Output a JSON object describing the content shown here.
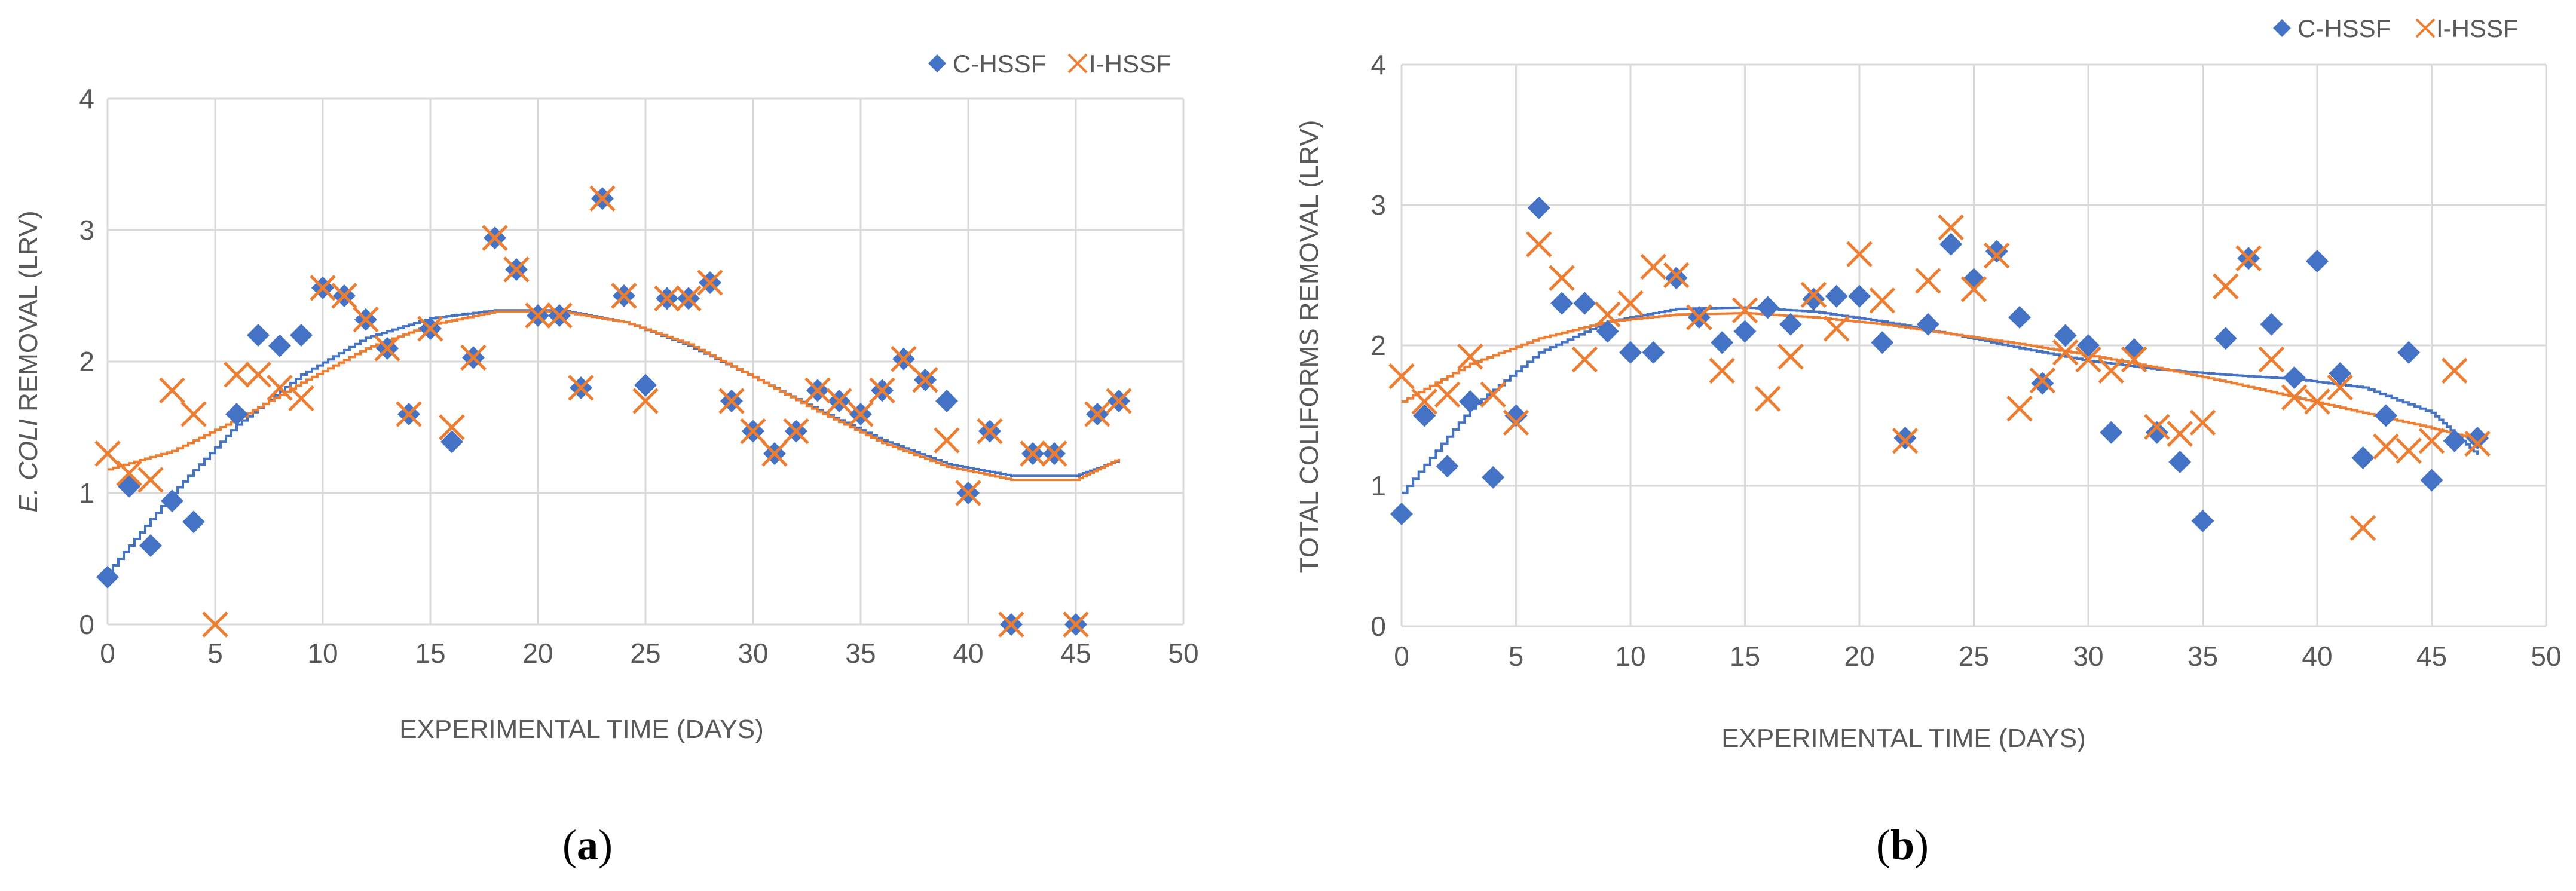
{
  "colors": {
    "c_hssf": "#4472C4",
    "i_hssf": "#ED7D31",
    "grid": "#D9D9D9",
    "text": "#595959"
  },
  "chart_data": [
    {
      "panel_label": "a",
      "type": "scatter",
      "title": "",
      "xlabel": "EXPERIMENTAL TIME (DAYS)",
      "ylabel_italic": "E. COLI",
      "ylabel_rest": " REMOVAL (LRV)",
      "xlim": [
        0,
        50
      ],
      "ylim": [
        0,
        4
      ],
      "xticks": [
        0,
        5,
        10,
        15,
        20,
        25,
        30,
        35,
        40,
        45,
        50
      ],
      "yticks": [
        0,
        1,
        2,
        3,
        4
      ],
      "grid": true,
      "legend_position": "top-right",
      "series": [
        {
          "name": "C-HSSF",
          "marker": "diamond",
          "x": [
            0,
            1,
            2,
            3,
            4,
            6,
            7,
            8,
            9,
            10,
            11,
            12,
            13,
            14,
            15,
            16,
            17,
            18,
            19,
            20,
            21,
            22,
            23,
            24,
            25,
            26,
            27,
            28,
            29,
            30,
            31,
            32,
            33,
            34,
            35,
            36,
            37,
            38,
            39,
            40,
            41,
            42,
            43,
            44,
            45,
            46,
            47
          ],
          "y": [
            0.36,
            1.05,
            0.6,
            0.94,
            0.78,
            1.6,
            2.2,
            2.12,
            2.2,
            2.56,
            2.5,
            2.32,
            2.1,
            1.6,
            2.25,
            1.39,
            2.03,
            2.94,
            2.7,
            2.35,
            2.35,
            1.8,
            3.24,
            2.5,
            1.82,
            2.48,
            2.48,
            2.6,
            1.7,
            1.47,
            1.3,
            1.47,
            1.78,
            1.7,
            1.6,
            1.78,
            2.02,
            1.86,
            1.7,
            1.0,
            1.47,
            0.0,
            1.3,
            1.3,
            0.0,
            1.6,
            1.7
          ],
          "trend": [
            [
              0,
              0.4
            ],
            [
              3,
              1.0
            ],
            [
              6,
              1.52
            ],
            [
              9,
              1.9
            ],
            [
              12,
              2.18
            ],
            [
              15,
              2.33
            ],
            [
              18,
              2.39
            ],
            [
              21,
              2.39
            ],
            [
              24,
              2.3
            ],
            [
              27,
              2.12
            ],
            [
              30,
              1.88
            ],
            [
              33,
              1.63
            ],
            [
              36,
              1.4
            ],
            [
              39,
              1.22
            ],
            [
              42,
              1.13
            ],
            [
              45,
              1.13
            ],
            [
              47,
              1.25
            ]
          ]
        },
        {
          "name": "I-HSSF",
          "marker": "x",
          "x": [
            0,
            1,
            2,
            3,
            4,
            5,
            6,
            7,
            8,
            9,
            10,
            11,
            12,
            13,
            14,
            15,
            16,
            17,
            18,
            19,
            20,
            21,
            22,
            23,
            24,
            25,
            26,
            27,
            28,
            29,
            30,
            31,
            32,
            33,
            34,
            35,
            36,
            37,
            38,
            39,
            40,
            41,
            42,
            43,
            44,
            45,
            46,
            47
          ],
          "y": [
            1.3,
            1.15,
            1.1,
            1.78,
            1.6,
            0.0,
            1.9,
            1.9,
            1.8,
            1.72,
            2.56,
            2.5,
            2.32,
            2.1,
            1.6,
            2.25,
            1.5,
            2.03,
            2.94,
            2.7,
            2.35,
            2.35,
            1.8,
            3.24,
            2.5,
            1.7,
            2.48,
            2.48,
            2.6,
            1.7,
            1.47,
            1.3,
            1.47,
            1.78,
            1.7,
            1.6,
            1.78,
            2.02,
            1.86,
            1.4,
            1.0,
            1.47,
            0.0,
            1.3,
            1.3,
            0.0,
            1.6,
            1.7
          ],
          "trend": [
            [
              0,
              1.18
            ],
            [
              3,
              1.32
            ],
            [
              6,
              1.56
            ],
            [
              9,
              1.84
            ],
            [
              12,
              2.1
            ],
            [
              15,
              2.28
            ],
            [
              18,
              2.38
            ],
            [
              21,
              2.38
            ],
            [
              24,
              2.3
            ],
            [
              27,
              2.13
            ],
            [
              30,
              1.88
            ],
            [
              33,
              1.62
            ],
            [
              36,
              1.38
            ],
            [
              39,
              1.2
            ],
            [
              42,
              1.1
            ],
            [
              45,
              1.1
            ],
            [
              47,
              1.26
            ]
          ]
        }
      ]
    },
    {
      "panel_label": "b",
      "type": "scatter",
      "title": "",
      "xlabel": "EXPERIMENTAL TIME (DAYS)",
      "ylabel": "TOTAL COLIFORMS REMOVAL (LRV)",
      "xlim": [
        0,
        50
      ],
      "ylim": [
        0,
        4
      ],
      "xticks": [
        0,
        5,
        10,
        15,
        20,
        25,
        30,
        35,
        40,
        45,
        50
      ],
      "yticks": [
        0,
        1,
        2,
        3,
        4
      ],
      "grid": true,
      "legend_position": "top-right",
      "series": [
        {
          "name": "C-HSSF",
          "marker": "diamond",
          "x": [
            0,
            1,
            2,
            3,
            4,
            5,
            6,
            7,
            8,
            9,
            10,
            11,
            12,
            13,
            14,
            15,
            16,
            17,
            18,
            19,
            20,
            21,
            22,
            23,
            24,
            25,
            26,
            27,
            28,
            29,
            30,
            31,
            32,
            33,
            34,
            35,
            36,
            37,
            38,
            39,
            40,
            41,
            42,
            43,
            44,
            45,
            46,
            47
          ],
          "y": [
            0.8,
            1.5,
            1.14,
            1.6,
            1.06,
            1.5,
            2.98,
            2.3,
            2.3,
            2.1,
            1.95,
            1.95,
            2.48,
            2.2,
            2.02,
            2.1,
            2.27,
            2.15,
            2.33,
            2.35,
            2.35,
            2.02,
            1.34,
            2.15,
            2.72,
            2.47,
            2.67,
            2.2,
            1.73,
            2.07,
            2.0,
            1.38,
            1.97,
            1.38,
            1.17,
            0.75,
            2.05,
            2.62,
            2.15,
            1.77,
            2.6,
            1.8,
            1.2,
            1.5,
            1.95,
            1.04,
            1.32,
            1.34
          ],
          "trend": [
            [
              0,
              0.95
            ],
            [
              3,
              1.55
            ],
            [
              6,
              1.95
            ],
            [
              9,
              2.17
            ],
            [
              12,
              2.26
            ],
            [
              15,
              2.27
            ],
            [
              18,
              2.24
            ],
            [
              21,
              2.17
            ],
            [
              24,
              2.08
            ],
            [
              27,
              1.98
            ],
            [
              30,
              1.89
            ],
            [
              33,
              1.83
            ],
            [
              36,
              1.79
            ],
            [
              39,
              1.76
            ],
            [
              42,
              1.7
            ],
            [
              45,
              1.52
            ],
            [
              47,
              1.22
            ]
          ]
        },
        {
          "name": "I-HSSF",
          "marker": "x",
          "x": [
            0,
            1,
            2,
            3,
            4,
            5,
            6,
            7,
            8,
            9,
            10,
            11,
            12,
            13,
            14,
            15,
            16,
            17,
            18,
            19,
            20,
            21,
            22,
            23,
            24,
            25,
            26,
            27,
            28,
            29,
            30,
            31,
            32,
            33,
            34,
            35,
            36,
            37,
            38,
            39,
            40,
            41,
            42,
            43,
            44,
            45,
            46,
            47
          ],
          "y": [
            1.78,
            1.6,
            1.65,
            1.92,
            1.65,
            1.45,
            2.72,
            2.48,
            1.9,
            2.22,
            2.3,
            2.56,
            2.5,
            2.2,
            1.82,
            2.25,
            1.62,
            1.92,
            2.36,
            2.12,
            2.65,
            2.32,
            1.32,
            2.46,
            2.84,
            2.4,
            2.64,
            1.55,
            1.75,
            1.95,
            1.9,
            1.82,
            1.9,
            1.42,
            1.37,
            1.45,
            2.42,
            2.62,
            1.9,
            1.63,
            1.6,
            1.7,
            0.7,
            1.28,
            1.25,
            1.32,
            1.82,
            1.3
          ],
          "trend": [
            [
              0,
              1.6
            ],
            [
              3,
              1.87
            ],
            [
              6,
              2.05
            ],
            [
              9,
              2.17
            ],
            [
              12,
              2.22
            ],
            [
              15,
              2.23
            ],
            [
              18,
              2.2
            ],
            [
              21,
              2.15
            ],
            [
              24,
              2.08
            ],
            [
              27,
              2.01
            ],
            [
              30,
              1.93
            ],
            [
              33,
              1.84
            ],
            [
              36,
              1.74
            ],
            [
              39,
              1.63
            ],
            [
              42,
              1.52
            ],
            [
              45,
              1.41
            ],
            [
              47,
              1.33
            ]
          ]
        }
      ]
    }
  ]
}
